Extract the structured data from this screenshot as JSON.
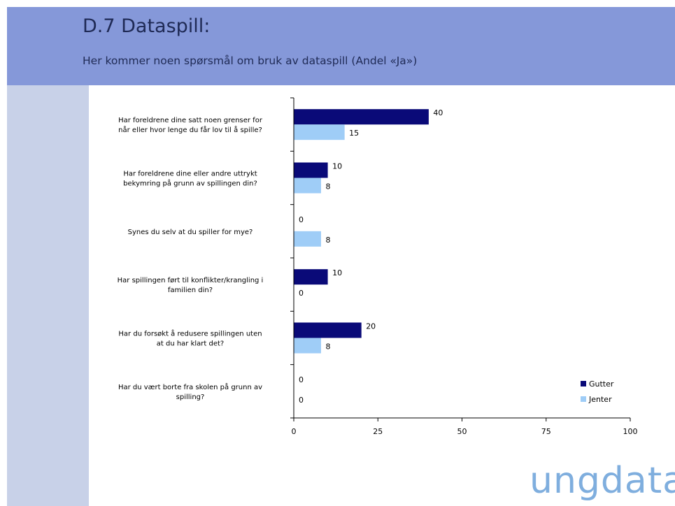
{
  "slide": {
    "title": "D.7 Dataspill:",
    "subtitle": "Her kommer  noen spørsmål om bruk av dataspill (Andel «Ja»)",
    "logo_text": "ungdata"
  },
  "colors": {
    "header_bg": "#8598d9",
    "sidebar_bg": "#c8d1e8",
    "gutter": "#0a0a78",
    "jenter": "#9fcdf7",
    "logo": "#7faede"
  },
  "chart_data": {
    "type": "bar",
    "orientation": "horizontal",
    "categories": [
      [
        "Har foreldrene dine satt noen grenser for",
        "når eller hvor lenge du får lov til å spille?"
      ],
      [
        "Har foreldrene dine eller andre uttrykt",
        "bekymring på grunn av spillingen din?"
      ],
      [
        "Synes du selv at du spiller for mye?"
      ],
      [
        "Har spillingen ført til konflikter/krangling i",
        "familien din?"
      ],
      [
        "Har du forsøkt å redusere spillingen uten",
        "at du har klart det?"
      ],
      [
        "Har du vært borte fra skolen på grunn av",
        "spilling?"
      ]
    ],
    "series": [
      {
        "name": "Gutter",
        "values": [
          40,
          10,
          0,
          10,
          20,
          0
        ]
      },
      {
        "name": "Jenter",
        "values": [
          15,
          8,
          8,
          0,
          8,
          0
        ]
      }
    ],
    "xlim": [
      0,
      100
    ],
    "xticks": [
      0,
      25,
      50,
      75,
      100
    ],
    "data_labels": true,
    "legend": "bottom-right",
    "grid": false
  }
}
